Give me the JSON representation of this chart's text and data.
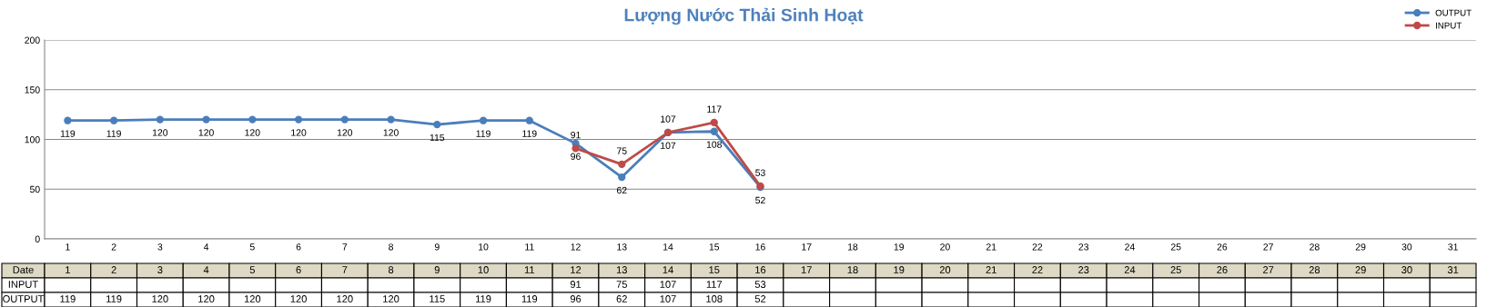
{
  "chart_data": {
    "type": "line",
    "title": "Lượng Nước Thải Sinh Hoạt",
    "xlabel": "Date",
    "categories": [
      "1",
      "2",
      "3",
      "4",
      "5",
      "6",
      "7",
      "8",
      "9",
      "10",
      "11",
      "12",
      "13",
      "14",
      "15",
      "16",
      "17",
      "18",
      "19",
      "20",
      "21",
      "22",
      "23",
      "24",
      "25",
      "26",
      "27",
      "28",
      "29",
      "30",
      "31"
    ],
    "series": [
      {
        "name": "OUTPUT",
        "color": "#4a7ebb",
        "values": [
          119,
          119,
          120,
          120,
          120,
          120,
          120,
          120,
          115,
          119,
          119,
          96,
          62,
          107,
          108,
          52,
          null,
          null,
          null,
          null,
          null,
          null,
          null,
          null,
          null,
          null,
          null,
          null,
          null,
          null,
          null
        ]
      },
      {
        "name": "INPUT",
        "color": "#be4b48",
        "values": [
          null,
          null,
          null,
          null,
          null,
          null,
          null,
          null,
          null,
          null,
          null,
          91,
          75,
          107,
          117,
          53,
          null,
          null,
          null,
          null,
          null,
          null,
          null,
          null,
          null,
          null,
          null,
          null,
          null,
          null,
          null
        ]
      }
    ],
    "annotations": [
      {
        "text": "119",
        "x": "1",
        "y": 119
      },
      {
        "text": "119",
        "x": "2",
        "y": 119
      },
      {
        "text": "120",
        "x": "3",
        "y": 120
      },
      {
        "text": "120",
        "x": "4",
        "y": 120
      },
      {
        "text": "120",
        "x": "5",
        "y": 120
      },
      {
        "text": "120",
        "x": "6",
        "y": 120
      },
      {
        "text": "120",
        "x": "7",
        "y": 120
      },
      {
        "text": "120",
        "x": "8",
        "y": 120
      },
      {
        "text": "115",
        "x": "9",
        "y": 115
      },
      {
        "text": "119",
        "x": "10",
        "y": 119
      },
      {
        "text": "119",
        "x": "11",
        "y": 119
      },
      {
        "text": "96",
        "x": "12",
        "y": 96
      },
      {
        "text": "62",
        "x": "13",
        "y": 62
      },
      {
        "text": "107",
        "x": "14",
        "y": 107
      },
      {
        "text": "108",
        "x": "15",
        "y": 108
      },
      {
        "text": "52",
        "x": "16",
        "y": 52
      },
      {
        "text": "91",
        "x": "12",
        "y": 91
      },
      {
        "text": "75",
        "x": "13",
        "y": 75
      },
      {
        "text": "107",
        "x": "14",
        "y": 107
      },
      {
        "text": "117",
        "x": "15",
        "y": 117
      },
      {
        "text": "53",
        "x": "16",
        "y": 53
      }
    ],
    "ylim": [
      0,
      200
    ],
    "yticks": [
      0,
      50,
      100,
      150,
      200
    ],
    "grid": "y",
    "legend": "top right",
    "marker": "circle",
    "line_style": "solid",
    "data_labels": true
  }
}
